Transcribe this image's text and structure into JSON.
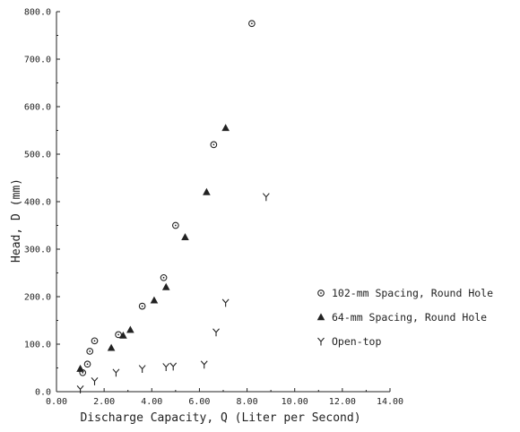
{
  "chart_data": {
    "type": "scatter",
    "xlabel": "Discharge Capacity, Q (Liter per Second)",
    "ylabel": "Head, D (mm)",
    "xlim": [
      0,
      14
    ],
    "ylim": [
      0,
      800
    ],
    "x_ticks": [
      "0.00",
      "2.00",
      "4.00",
      "6.00",
      "8.00",
      "10.00",
      "12.00",
      "14.00"
    ],
    "y_ticks": [
      "0.0",
      "100.0",
      "200.0",
      "300.0",
      "400.0",
      "500.0",
      "600.0",
      "700.0",
      "800.0"
    ],
    "legend_position": "right",
    "series": [
      {
        "name": "102-mm Spacing, Round Hole",
        "marker": "circle-dot",
        "points": [
          [
            1.1,
            40
          ],
          [
            1.3,
            58
          ],
          [
            1.4,
            85
          ],
          [
            1.6,
            107
          ],
          [
            2.6,
            120
          ],
          [
            3.6,
            180
          ],
          [
            4.5,
            240
          ],
          [
            5.0,
            350
          ],
          [
            6.6,
            520
          ],
          [
            8.2,
            775
          ]
        ]
      },
      {
        "name": "64-mm Spacing, Round Hole",
        "marker": "triangle",
        "points": [
          [
            1.0,
            48
          ],
          [
            2.3,
            92
          ],
          [
            2.8,
            118
          ],
          [
            3.1,
            130
          ],
          [
            4.1,
            192
          ],
          [
            4.6,
            220
          ],
          [
            5.4,
            325
          ],
          [
            6.3,
            420
          ],
          [
            7.1,
            555
          ]
        ]
      },
      {
        "name": "Open-top",
        "marker": "y",
        "points": [
          [
            1.0,
            5
          ],
          [
            1.6,
            22
          ],
          [
            2.5,
            40
          ],
          [
            3.6,
            48
          ],
          [
            4.6,
            52
          ],
          [
            4.9,
            53
          ],
          [
            6.2,
            57
          ],
          [
            6.7,
            125
          ],
          [
            7.1,
            187
          ],
          [
            8.8,
            410
          ]
        ]
      }
    ]
  }
}
